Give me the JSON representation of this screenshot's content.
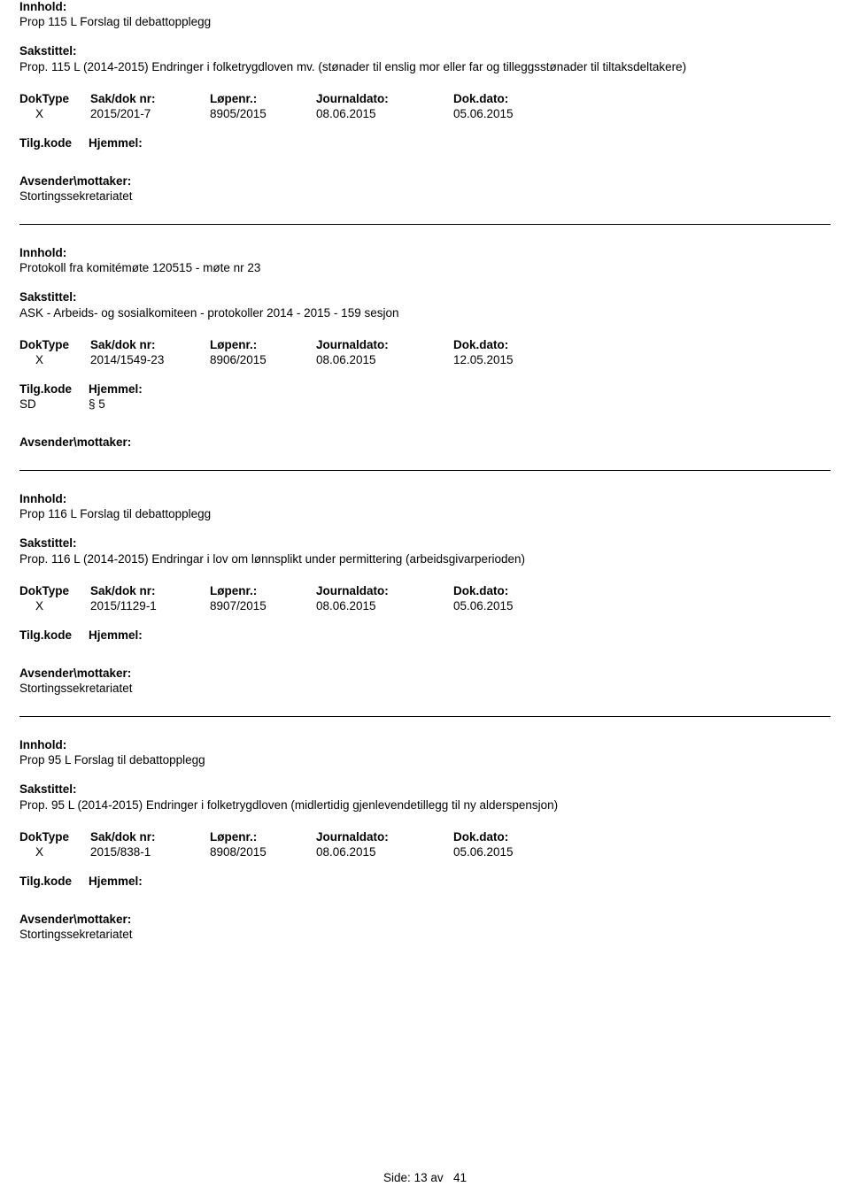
{
  "labels": {
    "innhold": "Innhold:",
    "sakstittel": "Sakstittel:",
    "doktype": "DokType",
    "sakdok": "Sak/dok nr:",
    "lopenr": "Løpenr.:",
    "journaldato": "Journaldato:",
    "dokdato": "Dok.dato:",
    "tilgkode": "Tilg.kode",
    "hjemmel": "Hjemmel:",
    "avsender": "Avsender\\mottaker:"
  },
  "entries": [
    {
      "innhold": "Prop 115 L Forslag til debattopplegg",
      "sakstittel": "Prop. 115 L (2014-2015) Endringer i folketrygdloven mv. (stønader til enslig mor eller far og tilleggsstønader til tiltaksdeltakere)",
      "doktype": "X",
      "sakdok": "2015/201-7",
      "lopenr": "8905/2015",
      "journaldato": "08.06.2015",
      "dokdato": "05.06.2015",
      "tilgcode": "",
      "hjemmel": "",
      "avsender_value": "Stortingssekretariatet"
    },
    {
      "innhold": "Protokoll fra komitémøte 120515 - møte nr 23",
      "sakstittel": "ASK - Arbeids- og sosialkomiteen - protokoller 2014 - 2015 - 159 sesjon",
      "doktype": "X",
      "sakdok": "2014/1549-23",
      "lopenr": "8906/2015",
      "journaldato": "08.06.2015",
      "dokdato": "12.05.2015",
      "tilgcode": "SD",
      "hjemmel": "§ 5",
      "avsender_value": ""
    },
    {
      "innhold": "Prop 116 L Forslag til debattopplegg",
      "sakstittel": "Prop. 116 L (2014-2015) Endringar i lov om lønnsplikt under permittering (arbeidsgivarperioden)",
      "doktype": "X",
      "sakdok": "2015/1129-1",
      "lopenr": "8907/2015",
      "journaldato": "08.06.2015",
      "dokdato": "05.06.2015",
      "tilgcode": "",
      "hjemmel": "",
      "avsender_value": "Stortingssekretariatet"
    },
    {
      "innhold": "Prop 95 L Forslag til debattopplegg",
      "sakstittel": "Prop. 95 L (2014-2015) Endringer i folketrygdloven (midlertidig gjenlevendetillegg til ny alderspensjon)",
      "doktype": "X",
      "sakdok": "2015/838-1",
      "lopenr": "8908/2015",
      "journaldato": "08.06.2015",
      "dokdato": "05.06.2015",
      "tilgcode": "",
      "hjemmel": "",
      "avsender_value": "Stortingssekretariatet"
    }
  ],
  "footer": {
    "side": "Side:",
    "page_num": "13",
    "av": "av",
    "total": "41"
  }
}
